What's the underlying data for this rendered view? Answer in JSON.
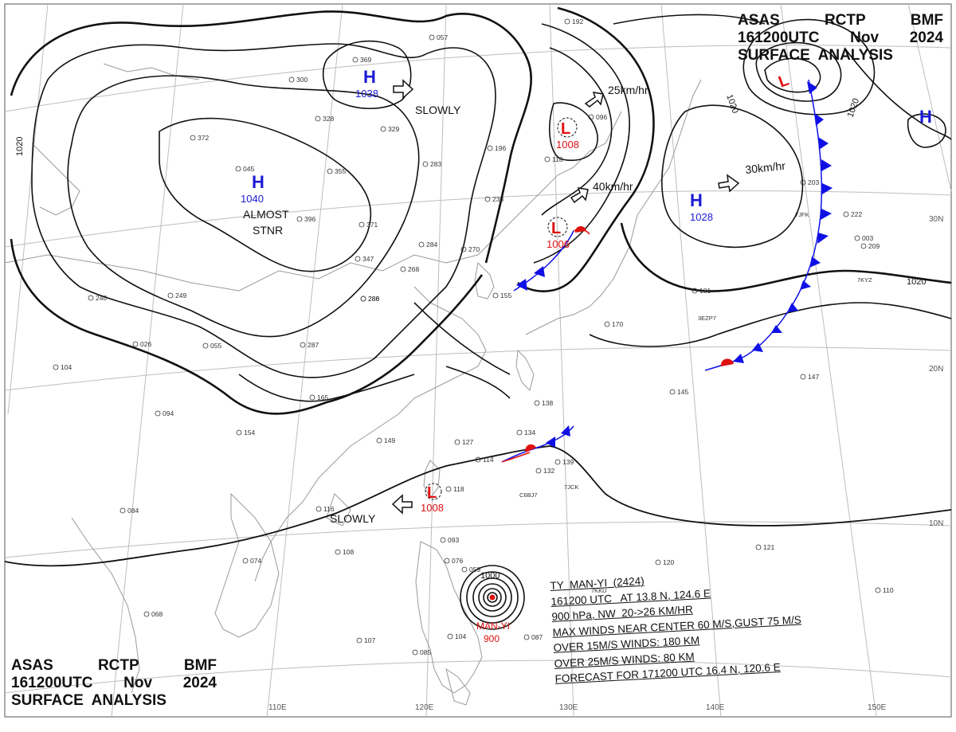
{
  "header_top_right": {
    "line1": [
      "ASAS",
      "RCTP",
      "BMF"
    ],
    "line2": [
      "161200UTC",
      "Nov",
      "2024"
    ],
    "line3": "SURFACE  ANALYSIS"
  },
  "header_bottom_left": {
    "line1": [
      "ASAS",
      "RCTP",
      "BMF"
    ],
    "line2": [
      "161200UTC",
      "Nov",
      "2024"
    ],
    "line3": "SURFACE  ANALYSIS"
  },
  "pressure_systems": [
    {
      "type": "H",
      "value": "1038"
    },
    {
      "type": "H",
      "value": "1040"
    },
    {
      "type": "H",
      "value": "1028"
    },
    {
      "type": "H",
      "value": ""
    },
    {
      "type": "L",
      "value": "1008"
    },
    {
      "type": "L",
      "value": "1006"
    },
    {
      "type": "L",
      "value": "1008"
    },
    {
      "type": "L",
      "value": ""
    }
  ],
  "motion_labels": [
    "SLOWLY",
    "25km/hr",
    "40km/hr",
    "30km/hr",
    "SLOWLY"
  ],
  "stationary_label": [
    "ALMOST",
    "STNR"
  ],
  "isobar_labels": [
    "1020",
    "1020",
    "1020",
    "1020",
    "1000"
  ],
  "lat_labels": [
    "30N",
    "20N",
    "10N"
  ],
  "lon_labels": [
    "110E",
    "120E",
    "130E",
    "140E",
    "150E"
  ],
  "typhoon": {
    "name": "MAN-YI",
    "pressure": "900",
    "info_lines": [
      "TY  MAN-YI  (2424)",
      "161200 UTC   AT 13.8 N, 124.6 E",
      "900 hPa, NW  20->26 KM/HR",
      "MAX WINDS NEAR CENTER 60 M/S,GUST 75 M/S",
      "OVER 15M/S WINDS: 180 KM",
      "OVER 25M/S WINDS: 80 KM",
      "FORECAST FOR 171200 UTC 16.4 N, 120.6 E"
    ]
  },
  "station_values": [
    "369",
    "300",
    "329",
    "328",
    "283",
    "355",
    "396",
    "371",
    "347",
    "284",
    "288",
    "286",
    "268",
    "270",
    "233",
    "118",
    "196",
    "096",
    "155",
    "287",
    "165",
    "154",
    "149",
    "127",
    "114",
    "134",
    "138",
    "132",
    "139",
    "145",
    "147",
    "203",
    "222",
    "181",
    "170",
    "116",
    "108",
    "118",
    "084",
    "074",
    "068",
    "107",
    "085",
    "104",
    "087",
    "094",
    "055",
    "026",
    "104",
    "093",
    "076",
    "059",
    "110",
    "120",
    "121",
    "209",
    "003",
    "192",
    "057",
    "045",
    "249",
    "372",
    "240"
  ],
  "station_ids": [
    "7JFK",
    "3EZP7",
    "C6BJ7",
    "7JCK",
    "7KKU",
    "7KYZ"
  ],
  "colors": {
    "high": "#1a1ad6",
    "low": "#e01010",
    "front_cold": "#1010e6",
    "front_warm": "#e01010",
    "isobar": "#111111",
    "coast": "#9a9a9a",
    "grid": "#bdbdbd"
  }
}
